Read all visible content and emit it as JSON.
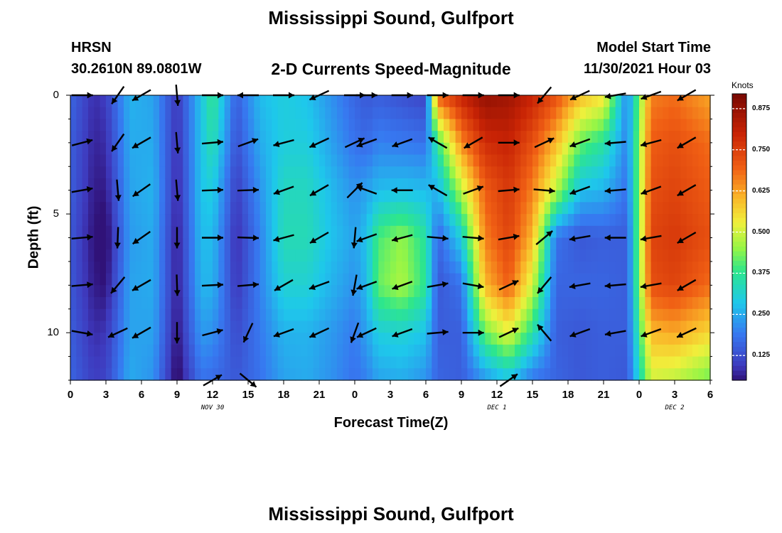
{
  "chart_data": {
    "type": "heatmap",
    "title": "Mississippi Sound, Gulfport",
    "model": "HRSN",
    "location": "30.2610N  89.0801W",
    "subtitle": "2-D Currents Speed-Magnitude",
    "model_start_label": "Model Start Time",
    "model_start_value": "11/30/2021 Hour 03",
    "xlabel": "Forecast Time(Z)",
    "ylabel": "Depth (ft)",
    "x_tick_labels": [
      "0",
      "3",
      "6",
      "9",
      "12",
      "15",
      "18",
      "21",
      "0",
      "3",
      "6",
      "9",
      "12",
      "15",
      "18",
      "21",
      "0",
      "3",
      "6"
    ],
    "date_labels": [
      {
        "label": "NOV 30",
        "hour_index": 12
      },
      {
        "label": "DEC 1",
        "hour_index": 36
      },
      {
        "label": "DEC 2",
        "hour_index": 51
      }
    ],
    "x_range_hours": [
      0,
      54
    ],
    "y_ticks": [
      0,
      5,
      10
    ],
    "y_range_ft": [
      0,
      12
    ],
    "colorbar": {
      "unit": "Knots",
      "range": [
        0.05,
        0.92
      ],
      "ticks": [
        "0.875",
        "0.750",
        "0.625",
        "0.500",
        "0.375",
        "0.250",
        "0.125"
      ]
    },
    "depth_levels_ft": [
      0,
      2,
      4,
      6,
      8,
      10,
      12
    ],
    "speed_columns": [
      {
        "hour": 0,
        "speeds": [
          0.16,
          0.15,
          0.15,
          0.14,
          0.14,
          0.15,
          0.16
        ]
      },
      {
        "hour": 2,
        "speeds": [
          0.08,
          0.07,
          0.06,
          0.05,
          0.06,
          0.08,
          0.1
        ]
      },
      {
        "hour": 3,
        "speeds": [
          0.1,
          0.08,
          0.06,
          0.03,
          0.05,
          0.09,
          0.11
        ]
      },
      {
        "hour": 5,
        "speeds": [
          0.26,
          0.25,
          0.24,
          0.23,
          0.24,
          0.24,
          0.25
        ]
      },
      {
        "hour": 7,
        "speeds": [
          0.24,
          0.25,
          0.26,
          0.25,
          0.25,
          0.24,
          0.22
        ]
      },
      {
        "hour": 9,
        "speeds": [
          0.09,
          0.08,
          0.07,
          0.06,
          0.06,
          0.05,
          0.03
        ]
      },
      {
        "hour": 11,
        "speeds": [
          0.28,
          0.28,
          0.28,
          0.27,
          0.26,
          0.23,
          0.18
        ]
      },
      {
        "hour": 12,
        "speeds": [
          0.38,
          0.35,
          0.3,
          0.27,
          0.26,
          0.22,
          0.17
        ]
      },
      {
        "hour": 14,
        "speeds": [
          0.15,
          0.13,
          0.1,
          0.08,
          0.09,
          0.12,
          0.14
        ]
      },
      {
        "hour": 16,
        "speeds": [
          0.27,
          0.25,
          0.22,
          0.2,
          0.2,
          0.19,
          0.18
        ]
      },
      {
        "hour": 18,
        "speeds": [
          0.3,
          0.3,
          0.33,
          0.34,
          0.31,
          0.26,
          0.24
        ]
      },
      {
        "hour": 20,
        "speeds": [
          0.28,
          0.3,
          0.33,
          0.34,
          0.31,
          0.26,
          0.25
        ]
      },
      {
        "hour": 22,
        "speeds": [
          0.22,
          0.24,
          0.27,
          0.28,
          0.26,
          0.23,
          0.22
        ]
      },
      {
        "hour": 24,
        "speeds": [
          0.16,
          0.18,
          0.22,
          0.24,
          0.22,
          0.19,
          0.18
        ]
      },
      {
        "hour": 25,
        "speeds": [
          0.14,
          0.17,
          0.24,
          0.28,
          0.27,
          0.24,
          0.2
        ]
      },
      {
        "hour": 26,
        "speeds": [
          0.15,
          0.2,
          0.27,
          0.4,
          0.42,
          0.3,
          0.24
        ]
      },
      {
        "hour": 28,
        "speeds": [
          0.13,
          0.19,
          0.28,
          0.45,
          0.47,
          0.31,
          0.25
        ]
      },
      {
        "hour": 30,
        "speeds": [
          0.11,
          0.18,
          0.27,
          0.36,
          0.37,
          0.28,
          0.22
        ]
      },
      {
        "hour": 31,
        "speeds": [
          0.7,
          0.38,
          0.26,
          0.16,
          0.14,
          0.15,
          0.16
        ]
      },
      {
        "hour": 33,
        "speeds": [
          0.8,
          0.65,
          0.48,
          0.3,
          0.18,
          0.15,
          0.15
        ]
      },
      {
        "hour": 35,
        "speeds": [
          0.88,
          0.78,
          0.7,
          0.66,
          0.6,
          0.42,
          0.22
        ]
      },
      {
        "hour": 37,
        "speeds": [
          0.86,
          0.8,
          0.76,
          0.74,
          0.7,
          0.52,
          0.28
        ]
      },
      {
        "hour": 39,
        "speeds": [
          0.8,
          0.72,
          0.66,
          0.6,
          0.5,
          0.36,
          0.18
        ]
      },
      {
        "hour": 41,
        "speeds": [
          0.72,
          0.6,
          0.48,
          0.18,
          0.16,
          0.15,
          0.16
        ]
      },
      {
        "hour": 43,
        "speeds": [
          0.6,
          0.42,
          0.28,
          0.14,
          0.16,
          0.14,
          0.14
        ]
      },
      {
        "hour": 45,
        "speeds": [
          0.55,
          0.36,
          0.26,
          0.15,
          0.16,
          0.15,
          0.15
        ]
      },
      {
        "hour": 47,
        "speeds": [
          0.2,
          0.2,
          0.18,
          0.15,
          0.15,
          0.15,
          0.14
        ]
      },
      {
        "hour": 49,
        "speeds": [
          0.66,
          0.7,
          0.72,
          0.74,
          0.72,
          0.6,
          0.5
        ]
      },
      {
        "hour": 51,
        "speeds": [
          0.68,
          0.72,
          0.74,
          0.76,
          0.74,
          0.62,
          0.48
        ]
      },
      {
        "hour": 54,
        "speeds": [
          0.62,
          0.68,
          0.7,
          0.72,
          0.68,
          0.56,
          0.42
        ]
      }
    ],
    "current_vectors_deg_from_east": [
      {
        "hour": 1,
        "dirs": [
          0,
          15,
          10,
          5,
          5,
          -10,
          0
        ]
      },
      {
        "hour": 4,
        "dirs": [
          -125,
          -125,
          -85,
          -92,
          -130,
          -155,
          0
        ]
      },
      {
        "hour": 6,
        "dirs": [
          -150,
          -150,
          -145,
          -145,
          -150,
          -150,
          0
        ]
      },
      {
        "hour": 9,
        "dirs": [
          -85,
          -85,
          -85,
          -90,
          -88,
          -90,
          0
        ]
      },
      {
        "hour": 12,
        "dirs": [
          0,
          5,
          2,
          0,
          3,
          15,
          30
        ]
      },
      {
        "hour": 15,
        "dirs": [
          180,
          20,
          2,
          -2,
          5,
          -115,
          -40
        ]
      },
      {
        "hour": 18,
        "dirs": [
          0,
          -165,
          -160,
          -165,
          -150,
          -160,
          0
        ]
      },
      {
        "hour": 21,
        "dirs": [
          -155,
          -155,
          -150,
          -150,
          -160,
          -155,
          0
        ]
      },
      {
        "hour": 24,
        "dirs": [
          0,
          25,
          45,
          -95,
          -100,
          -110,
          0
        ]
      },
      {
        "hour": 25,
        "dirs": [
          0,
          -160,
          160,
          -160,
          -160,
          -155,
          0
        ]
      },
      {
        "hour": 28,
        "dirs": [
          0,
          -160,
          180,
          -165,
          -160,
          -160,
          0
        ]
      },
      {
        "hour": 31,
        "dirs": [
          0,
          150,
          150,
          -5,
          10,
          5,
          0
        ]
      },
      {
        "hour": 34,
        "dirs": [
          0,
          -150,
          20,
          -5,
          -10,
          0,
          0
        ]
      },
      {
        "hour": 37,
        "dirs": [
          0,
          0,
          5,
          10,
          25,
          25,
          35
        ]
      },
      {
        "hour": 40,
        "dirs": [
          -130,
          25,
          -5,
          40,
          -130,
          130,
          0
        ]
      },
      {
        "hour": 43,
        "dirs": [
          -155,
          -160,
          -160,
          -170,
          -170,
          -160,
          0
        ]
      },
      {
        "hour": 46,
        "dirs": [
          -170,
          -175,
          -175,
          -180,
          -175,
          -170,
          0
        ]
      },
      {
        "hour": 49,
        "dirs": [
          -160,
          -165,
          -160,
          -170,
          -170,
          -160,
          0
        ]
      },
      {
        "hour": 52,
        "dirs": [
          -150,
          -150,
          -150,
          -150,
          -150,
          -155,
          0
        ]
      }
    ]
  }
}
